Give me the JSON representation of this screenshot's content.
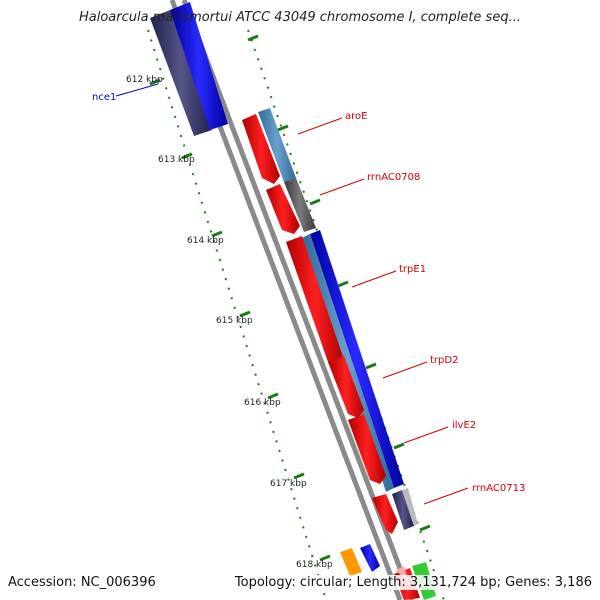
{
  "title": "Haloarcula marismortui ATCC 43049 chromosome I, complete seq...",
  "accession": "Accession: NC_006396",
  "topology": "Topology: circular; Length: 3,131,724 bp; Genes: 3,186",
  "kbp_ticks": [
    "612 kbp",
    "613 kbp",
    "614 kbp",
    "615 kbp",
    "616 kbp",
    "617 kbp",
    "618 kbp"
  ],
  "gene_labels": [
    {
      "name": "nce1",
      "color": "#0000cc"
    },
    {
      "name": "aroE",
      "color": "#cc0000"
    },
    {
      "name": "rrnAC0708",
      "color": "#cc0000"
    },
    {
      "name": "trpE1",
      "color": "#cc0000"
    },
    {
      "name": "trpD2",
      "color": "#cc0000"
    },
    {
      "name": "ilvE2",
      "color": "#cc0000"
    },
    {
      "name": "rrnAC0713",
      "color": "#cc0000"
    }
  ],
  "colors": {
    "backbone": "#888888",
    "cds": "#ff0000",
    "gene_blue": "#0000ff",
    "gene_steel": "#4a86b8",
    "gene_gray": "#555555",
    "gene_navy": "#3a3a7a",
    "gene_orange": "#ff9900",
    "gene_green": "#33cc33",
    "tick_green": "#1a7a1a"
  }
}
